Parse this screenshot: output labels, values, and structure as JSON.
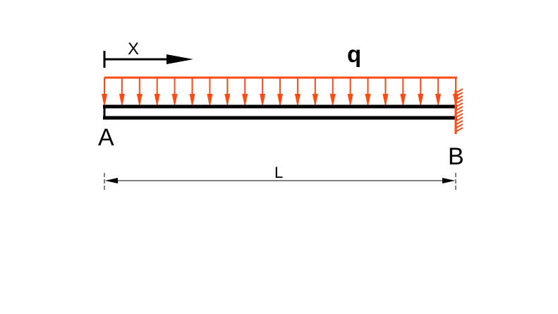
{
  "diagram": {
    "type": "cantilever beam with uniformly distributed load",
    "labels": {
      "coordinate": "X",
      "load": "q",
      "left_end": "A",
      "right_end": "B",
      "length": "L"
    },
    "load_arrow_count": 21,
    "support_right": "fixed"
  },
  "colors": {
    "load": "#ff4a14",
    "beam": "#000000",
    "text": "#000000",
    "background": "#ffffff"
  },
  "icons": {
    "support": "fixed-wall-hatch-icon",
    "x_arrow": "arrow-right-icon"
  }
}
